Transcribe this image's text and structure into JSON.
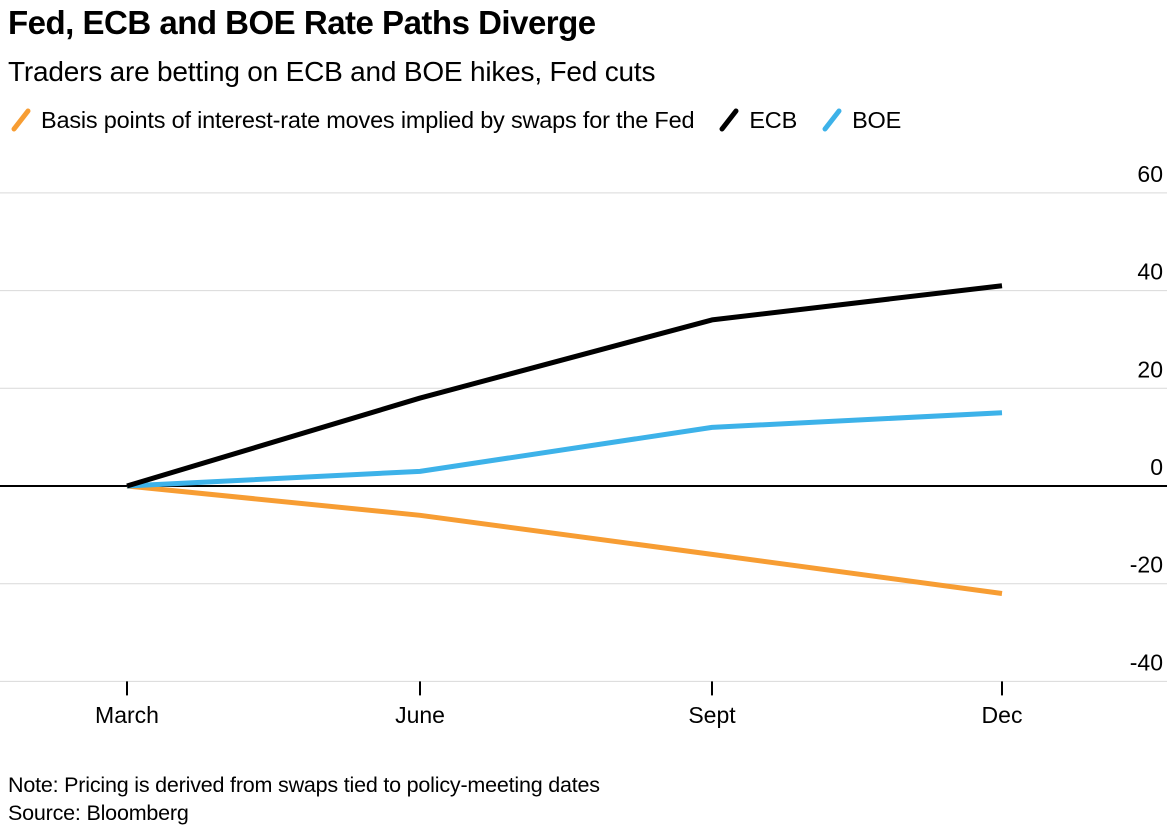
{
  "header": {
    "title": "Fed, ECB and BOE Rate Paths Diverge",
    "subtitle": "Traders are betting on ECB and BOE hikes, Fed cuts"
  },
  "legend": {
    "items": [
      {
        "label": "Basis points of interest-rate moves implied by swaps for the Fed",
        "color": "#F79D33",
        "marker": "slash-icon"
      },
      {
        "label": "ECB",
        "color": "#000000",
        "marker": "slash-icon"
      },
      {
        "label": "BOE",
        "color": "#3DB2E9",
        "marker": "slash-icon"
      }
    ]
  },
  "chart_data": {
    "type": "line",
    "categories": [
      "March",
      "June",
      "Sept",
      "Dec"
    ],
    "series": [
      {
        "name": "Fed",
        "color": "#F79D33",
        "values": [
          0,
          -6,
          -14,
          -22
        ]
      },
      {
        "name": "ECB",
        "color": "#000000",
        "values": [
          0,
          18,
          34,
          41
        ]
      },
      {
        "name": "BOE",
        "color": "#3DB2E9",
        "values": [
          0,
          3,
          12,
          15
        ]
      }
    ],
    "title": "Fed, ECB and BOE Rate Paths Diverge",
    "xlabel": "",
    "ylabel": "",
    "unit": "basis points",
    "yticks": [
      60,
      40,
      20,
      0,
      -20,
      -40
    ],
    "ylim": [
      -40,
      60
    ],
    "grid": "horizontal",
    "gridline_color": "#d9d9d9",
    "zero_baseline": true,
    "legend_position": "top"
  },
  "footer": {
    "note": "Note: Pricing is derived from swaps tied to policy-meeting dates",
    "source": "Source: Bloomberg"
  }
}
